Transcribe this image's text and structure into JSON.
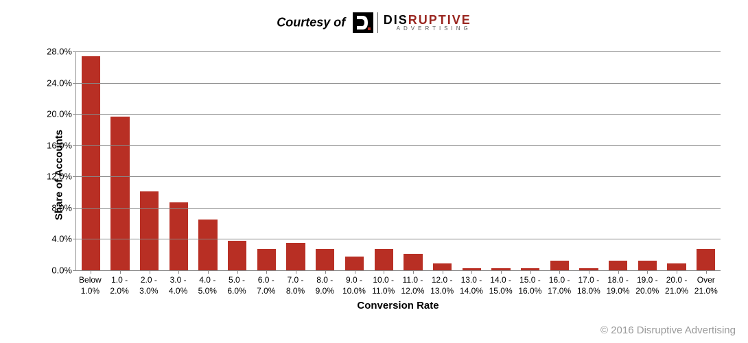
{
  "header": {
    "courtesy_text": "Courtesy of",
    "logo": {
      "icon_bg": "#000000",
      "icon_fg": "#ffffff",
      "main_dark": "DIS",
      "main_red": "RUPTIVE",
      "sub": "ADVERTISING",
      "dark_color": "#000000",
      "red_color": "#9a2721"
    }
  },
  "chart": {
    "type": "bar",
    "y_axis": {
      "label": "Share of Accounts",
      "min": 0,
      "max": 28,
      "ticks": [
        0,
        4,
        8,
        12,
        16,
        20,
        24,
        28
      ],
      "tick_labels": [
        "0.0%",
        "4.0%",
        "8.0%",
        "12.0%",
        "16.0%",
        "20.0%",
        "24.0%",
        "28.0%"
      ],
      "label_fontsize": 15,
      "tick_fontsize": 13
    },
    "x_axis": {
      "label": "Conversion Rate",
      "label_fontsize": 15,
      "tick_fontsize": 12
    },
    "categories": [
      {
        "l1": "Below",
        "l2": "1.0%"
      },
      {
        "l1": "1.0 -",
        "l2": "2.0%"
      },
      {
        "l1": "2.0 -",
        "l2": "3.0%"
      },
      {
        "l1": "3.0 -",
        "l2": "4.0%"
      },
      {
        "l1": "4.0 -",
        "l2": "5.0%"
      },
      {
        "l1": "5.0 -",
        "l2": "6.0%"
      },
      {
        "l1": "6.0 -",
        "l2": "7.0%"
      },
      {
        "l1": "7.0 -",
        "l2": "8.0%"
      },
      {
        "l1": "8.0 -",
        "l2": "9.0%"
      },
      {
        "l1": "9.0 -",
        "l2": "10.0%"
      },
      {
        "l1": "10.0 -",
        "l2": "11.0%"
      },
      {
        "l1": "11.0 -",
        "l2": "12.0%"
      },
      {
        "l1": "12.0 -",
        "l2": "13.0%"
      },
      {
        "l1": "13.0 -",
        "l2": "14.0%"
      },
      {
        "l1": "14.0 -",
        "l2": "15.0%"
      },
      {
        "l1": "15.0 -",
        "l2": "16.0%"
      },
      {
        "l1": "16.0 -",
        "l2": "17.0%"
      },
      {
        "l1": "17.0 -",
        "l2": "18.0%"
      },
      {
        "l1": "18.0 -",
        "l2": "19.0%"
      },
      {
        "l1": "19.0 -",
        "l2": "20.0%"
      },
      {
        "l1": "20.0 -",
        "l2": "21.0%"
      },
      {
        "l1": "Over",
        "l2": "21.0%"
      }
    ],
    "values": [
      27.4,
      19.7,
      10.1,
      8.7,
      6.5,
      3.8,
      2.7,
      3.5,
      2.7,
      1.8,
      2.7,
      2.1,
      0.9,
      0.3,
      0.3,
      0.3,
      1.2,
      0.3,
      1.2,
      1.2,
      0.9,
      2.7
    ],
    "bar_color": "#b82f24",
    "grid_color": "#888888",
    "background_color": "#ffffff",
    "bar_width": 0.64
  },
  "footer": {
    "copyright": "© 2016 Disruptive Advertising",
    "copyright_color": "#9a9a9a"
  }
}
